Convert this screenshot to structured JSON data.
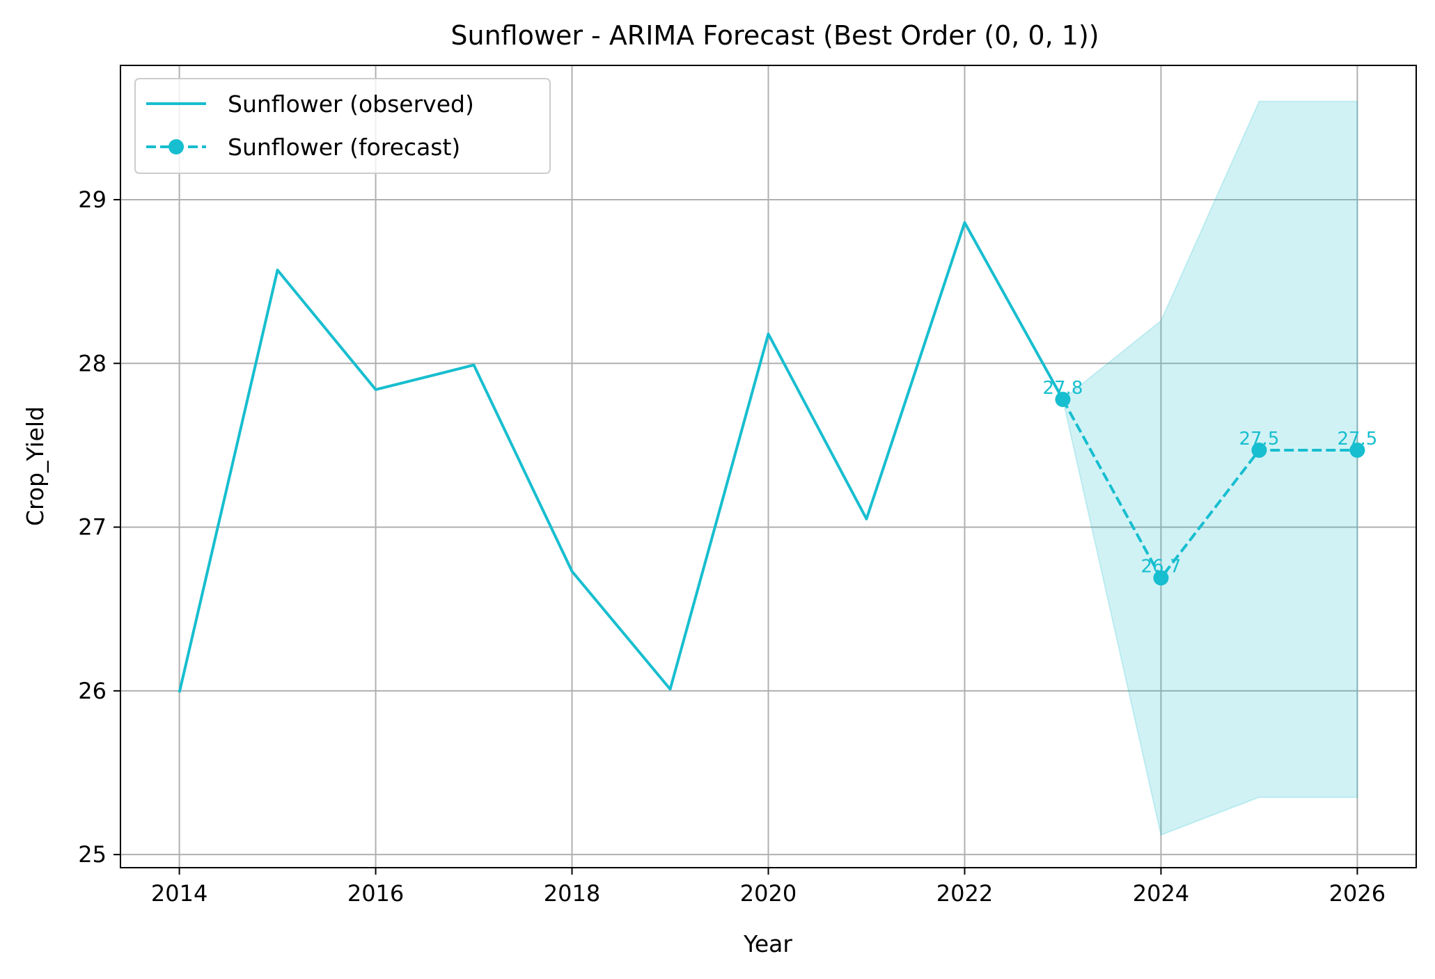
{
  "chart_data": {
    "type": "line",
    "title": "Sunflower - ARIMA Forecast (Best Order (0, 0, 1))",
    "xlabel": "Year",
    "ylabel": "Crop_Yield",
    "xlim": [
      2013.4,
      2026.6
    ],
    "ylim": [
      24.92,
      29.82
    ],
    "x_ticks": [
      2014,
      2016,
      2018,
      2020,
      2022,
      2024,
      2026
    ],
    "y_ticks": [
      25,
      26,
      27,
      28,
      29
    ],
    "x_tick_labels": [
      "2014",
      "2016",
      "2018",
      "2020",
      "2022",
      "2024",
      "2026"
    ],
    "y_tick_labels": [
      "25",
      "26",
      "27",
      "28",
      "29"
    ],
    "grid": true,
    "legend_position": "upper-left",
    "color": "#17becf",
    "series": [
      {
        "name": "Sunflower (observed)",
        "style": "solid",
        "x": [
          2014,
          2015,
          2016,
          2017,
          2018,
          2019,
          2020,
          2021,
          2022,
          2023
        ],
        "y": [
          25.99,
          28.57,
          27.84,
          27.99,
          26.73,
          26.01,
          28.18,
          27.05,
          28.86,
          27.78
        ]
      },
      {
        "name": "Sunflower (forecast)",
        "style": "dashed",
        "marker": "circle",
        "x": [
          2023,
          2024,
          2025,
          2026
        ],
        "y": [
          27.78,
          26.69,
          27.47,
          27.47
        ],
        "labels": [
          "27.8",
          "26.7",
          "27.5",
          "27.5"
        ]
      }
    ],
    "confidence_interval": {
      "x": [
        2023,
        2024,
        2025,
        2026
      ],
      "lower": [
        27.78,
        25.12,
        25.35,
        25.35
      ],
      "upper": [
        27.78,
        28.26,
        29.6,
        29.6
      ]
    }
  }
}
